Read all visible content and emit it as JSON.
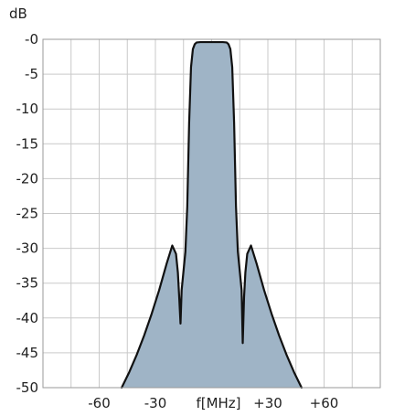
{
  "chart_data": {
    "type": "area",
    "title": "",
    "ylabel": "dB",
    "xlabel": "f[MHz]",
    "xlim": [
      -90,
      90
    ],
    "ylim": [
      -50,
      0
    ],
    "grid": true,
    "x_ticks": [
      {
        "value": -60,
        "label": "-60"
      },
      {
        "value": -30,
        "label": "-30"
      },
      {
        "value": 30,
        "label": "+30"
      },
      {
        "value": 60,
        "label": "+60"
      }
    ],
    "y_ticks": [
      {
        "value": 0,
        "label": "-0"
      },
      {
        "value": -5,
        "label": "-5"
      },
      {
        "value": -10,
        "label": "-10"
      },
      {
        "value": -15,
        "label": "-15"
      },
      {
        "value": -20,
        "label": "-20"
      },
      {
        "value": -25,
        "label": "-25"
      },
      {
        "value": -30,
        "label": "-30"
      },
      {
        "value": -35,
        "label": "-35"
      },
      {
        "value": -40,
        "label": "-40"
      },
      {
        "value": -45,
        "label": "-45"
      },
      {
        "value": -50,
        "label": "-50"
      }
    ],
    "x_gridlines": [
      -75,
      -60,
      -45,
      -30,
      -15,
      0,
      15,
      30,
      45,
      60,
      75
    ],
    "series": [
      {
        "x": [
          -48,
          -44,
          -40,
          -36,
          -32,
          -28,
          -24,
          -21,
          -19,
          -18,
          -17.3,
          -16.6,
          -16,
          -14,
          -14,
          -13,
          -12,
          -11,
          -10,
          -9,
          -8,
          -6,
          6,
          8,
          9,
          10,
          11,
          12,
          13,
          14,
          14,
          16,
          16.6,
          17.3,
          18,
          19,
          21,
          24,
          28,
          32,
          36,
          40,
          44,
          48
        ],
        "y": [
          -50,
          -47.8,
          -45.3,
          -42.5,
          -39.4,
          -36,
          -32.2,
          -29.6,
          -30.8,
          -33.5,
          -37,
          -40.8,
          -36,
          -30.5,
          -30.5,
          -24,
          -12,
          -4,
          -1.4,
          -0.7,
          -0.45,
          -0.4,
          -0.4,
          -0.45,
          -0.7,
          -1.4,
          -4,
          -12,
          -24,
          -30.5,
          -30.5,
          -36,
          -43.6,
          -37,
          -33.5,
          -30.8,
          -29.6,
          -32.2,
          -36,
          -39.4,
          -42.5,
          -45.3,
          -47.8,
          -50
        ],
        "color": "#4a7090",
        "fill": "#9fb4c6"
      }
    ]
  }
}
